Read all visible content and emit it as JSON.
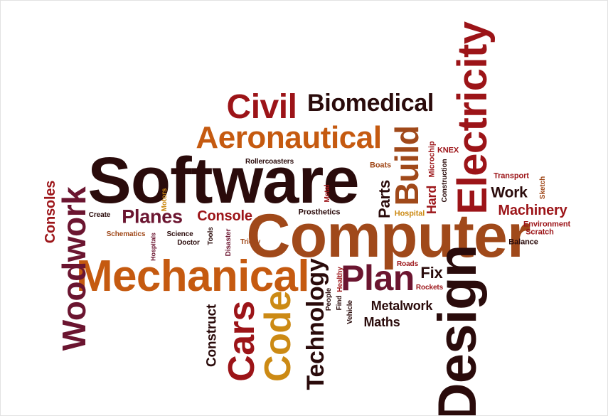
{
  "colors": {
    "dark": "#2a0b0b",
    "maroon": "#6b1530",
    "red": "#9c1418",
    "orange": "#c55a10",
    "brown": "#a0491a",
    "gold": "#cc8a14"
  },
  "words": [
    "Software",
    "Computer",
    "Mechanical",
    "Design",
    "Electricity",
    "Aeronautical",
    "Civil",
    "Biomedical",
    "Build",
    "Woodwork",
    "Code",
    "Cars",
    "Plan",
    "Technology",
    "Planes",
    "Consoles",
    "Console",
    "Construct",
    "Metalwork",
    "Maths",
    "Machinery",
    "Work",
    "Fix",
    "Parts",
    "Hard",
    "Prosthetics",
    "Rollercoasters",
    "Boats",
    "Microchip",
    "Construction",
    "KNEX",
    "Transport",
    "Sketch",
    "Environment",
    "Scratch",
    "Balance",
    "Hospital",
    "Roads",
    "Rockets",
    "Healthy",
    "People",
    "Find",
    "Vehicle",
    "Metal",
    "Motors",
    "Create",
    "Schematics",
    "Science",
    "Doctor",
    "Hospitals",
    "Tools",
    "Disaster",
    "Tricky"
  ]
}
